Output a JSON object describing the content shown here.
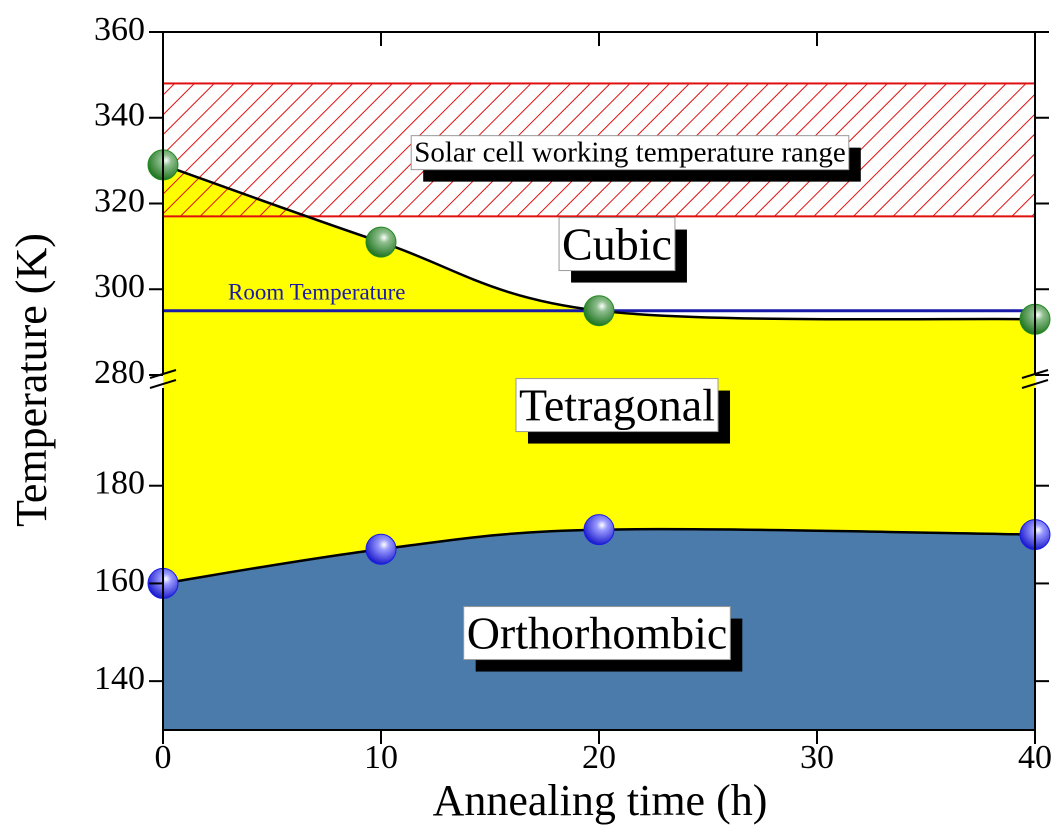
{
  "chart_data": {
    "type": "area",
    "x_label": "Annealing time (h)",
    "y_label": "Temperature (K)",
    "x": [
      0,
      10,
      20,
      40
    ],
    "xlim": [
      0,
      40
    ],
    "xticks": [
      0,
      10,
      20,
      30,
      40
    ],
    "y_segments": [
      {
        "ylim": [
          130,
          200
        ],
        "yticks": [
          140,
          160,
          180
        ]
      },
      {
        "ylim": [
          280,
          360
        ],
        "yticks": [
          280,
          300,
          320,
          340,
          360
        ]
      }
    ],
    "boundaries": [
      {
        "values": [
          160,
          167,
          171,
          170
        ],
        "color": "#1a1ae6"
      },
      {
        "values": [
          329,
          311,
          295,
          293
        ],
        "color": "#1f8a1f"
      }
    ],
    "regions": [
      {
        "label": "Orthorhombic",
        "color": "#4a7bab"
      },
      {
        "label": "Tetragonal",
        "color": "#ffff00"
      },
      {
        "label": "Cubic",
        "color": "#ffffff"
      }
    ],
    "reference_line": {
      "label": "Room Temperature",
      "value": 295,
      "color": "#1a1aa8"
    },
    "band": {
      "label": "Solar cell working temperature range",
      "range": [
        317,
        348
      ],
      "color": "#e01010"
    }
  }
}
